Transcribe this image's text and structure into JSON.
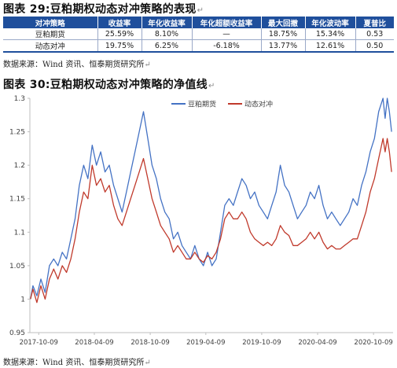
{
  "section1": {
    "title": "图表 29:豆粕期权动态对冲策略的表现",
    "source": "数据来源：Wind 资讯、恒泰期货研究所"
  },
  "table": {
    "headers": [
      "对冲策略",
      "收益率",
      "年化收益率",
      "年化超额收益率",
      "最大回撤",
      "年化波动率",
      "夏普比"
    ],
    "rows": [
      [
        "豆粕期货",
        "25.59%",
        "8.10%",
        "—",
        "18.75%",
        "15.34%",
        "0.53"
      ],
      [
        "动态对冲",
        "19.75%",
        "6.25%",
        "-6.18%",
        "13.77%",
        "12.61%",
        "0.50"
      ]
    ]
  },
  "section2": {
    "title": "图表 30:豆粕期权动态对冲策略的净值线",
    "source": "数据来源：Wind 资讯、恒泰期货研究所"
  },
  "return_mark": "↵",
  "chart_data": {
    "type": "line",
    "x_range": [
      "2017-09-10",
      "2020-12-12"
    ],
    "xticks": [
      "2017-10-09",
      "2018-04-09",
      "2018-10-09",
      "2019-04-09",
      "2019-10-09",
      "2020-04-09",
      "2020-10-09"
    ],
    "ylim": [
      0.95,
      1.3
    ],
    "yticks": [
      "0.95",
      "1",
      "1.05",
      "1.1",
      "1.15",
      "1.2",
      "1.25",
      "1.3"
    ],
    "grid": false,
    "legend_position": "top-right",
    "series": [
      {
        "name": "豆粕期货",
        "color": "#4472c4",
        "points": [
          [
            "2017-09-12",
            1.0
          ],
          [
            "2017-09-20",
            1.02
          ],
          [
            "2017-10-03",
            1.005
          ],
          [
            "2017-10-16",
            1.03
          ],
          [
            "2017-10-30",
            1.01
          ],
          [
            "2017-11-13",
            1.05
          ],
          [
            "2017-11-27",
            1.06
          ],
          [
            "2017-12-11",
            1.05
          ],
          [
            "2017-12-25",
            1.07
          ],
          [
            "2018-01-08",
            1.06
          ],
          [
            "2018-01-22",
            1.09
          ],
          [
            "2018-02-05",
            1.12
          ],
          [
            "2018-02-19",
            1.17
          ],
          [
            "2018-03-05",
            1.2
          ],
          [
            "2018-03-19",
            1.18
          ],
          [
            "2018-04-02",
            1.23
          ],
          [
            "2018-04-16",
            1.2
          ],
          [
            "2018-04-30",
            1.22
          ],
          [
            "2018-05-14",
            1.19
          ],
          [
            "2018-05-28",
            1.2
          ],
          [
            "2018-06-11",
            1.17
          ],
          [
            "2018-06-25",
            1.15
          ],
          [
            "2018-07-09",
            1.13
          ],
          [
            "2018-07-23",
            1.16
          ],
          [
            "2018-08-06",
            1.19
          ],
          [
            "2018-08-20",
            1.22
          ],
          [
            "2018-09-03",
            1.25
          ],
          [
            "2018-09-17",
            1.28
          ],
          [
            "2018-10-01",
            1.24
          ],
          [
            "2018-10-15",
            1.2
          ],
          [
            "2018-10-29",
            1.18
          ],
          [
            "2018-11-12",
            1.15
          ],
          [
            "2018-11-26",
            1.13
          ],
          [
            "2018-12-10",
            1.12
          ],
          [
            "2018-12-24",
            1.09
          ],
          [
            "2019-01-07",
            1.1
          ],
          [
            "2019-01-21",
            1.08
          ],
          [
            "2019-02-04",
            1.07
          ],
          [
            "2019-02-18",
            1.06
          ],
          [
            "2019-03-04",
            1.08
          ],
          [
            "2019-03-18",
            1.06
          ],
          [
            "2019-04-01",
            1.05
          ],
          [
            "2019-04-15",
            1.07
          ],
          [
            "2019-04-29",
            1.05
          ],
          [
            "2019-05-13",
            1.06
          ],
          [
            "2019-05-27",
            1.1
          ],
          [
            "2019-06-10",
            1.14
          ],
          [
            "2019-06-24",
            1.15
          ],
          [
            "2019-07-08",
            1.14
          ],
          [
            "2019-07-22",
            1.16
          ],
          [
            "2019-08-05",
            1.18
          ],
          [
            "2019-08-19",
            1.17
          ],
          [
            "2019-09-02",
            1.15
          ],
          [
            "2019-09-16",
            1.16
          ],
          [
            "2019-09-30",
            1.14
          ],
          [
            "2019-10-14",
            1.13
          ],
          [
            "2019-10-28",
            1.12
          ],
          [
            "2019-11-11",
            1.14
          ],
          [
            "2019-11-25",
            1.16
          ],
          [
            "2019-12-09",
            1.2
          ],
          [
            "2019-12-23",
            1.17
          ],
          [
            "2020-01-06",
            1.16
          ],
          [
            "2020-01-20",
            1.14
          ],
          [
            "2020-02-03",
            1.12
          ],
          [
            "2020-02-17",
            1.13
          ],
          [
            "2020-03-02",
            1.14
          ],
          [
            "2020-03-16",
            1.16
          ],
          [
            "2020-03-30",
            1.15
          ],
          [
            "2020-04-13",
            1.17
          ],
          [
            "2020-04-27",
            1.14
          ],
          [
            "2020-05-11",
            1.12
          ],
          [
            "2020-05-25",
            1.13
          ],
          [
            "2020-06-08",
            1.12
          ],
          [
            "2020-06-22",
            1.11
          ],
          [
            "2020-07-06",
            1.12
          ],
          [
            "2020-07-20",
            1.13
          ],
          [
            "2020-08-03",
            1.15
          ],
          [
            "2020-08-17",
            1.14
          ],
          [
            "2020-08-31",
            1.17
          ],
          [
            "2020-09-14",
            1.19
          ],
          [
            "2020-09-28",
            1.22
          ],
          [
            "2020-10-12",
            1.24
          ],
          [
            "2020-10-26",
            1.28
          ],
          [
            "2020-11-09",
            1.3
          ],
          [
            "2020-11-16",
            1.27
          ],
          [
            "2020-11-23",
            1.3
          ],
          [
            "2020-11-30",
            1.28
          ],
          [
            "2020-12-07",
            1.25
          ]
        ]
      },
      {
        "name": "动态对冲",
        "color": "#c0392b",
        "points": [
          [
            "2017-09-12",
            1.0
          ],
          [
            "2017-09-20",
            1.015
          ],
          [
            "2017-10-03",
            0.995
          ],
          [
            "2017-10-16",
            1.02
          ],
          [
            "2017-10-30",
            1.0
          ],
          [
            "2017-11-13",
            1.03
          ],
          [
            "2017-11-27",
            1.045
          ],
          [
            "2017-12-11",
            1.03
          ],
          [
            "2017-12-25",
            1.05
          ],
          [
            "2018-01-08",
            1.04
          ],
          [
            "2018-01-22",
            1.06
          ],
          [
            "2018-02-05",
            1.09
          ],
          [
            "2018-02-19",
            1.13
          ],
          [
            "2018-03-05",
            1.16
          ],
          [
            "2018-03-19",
            1.15
          ],
          [
            "2018-04-02",
            1.2
          ],
          [
            "2018-04-16",
            1.17
          ],
          [
            "2018-04-30",
            1.18
          ],
          [
            "2018-05-14",
            1.16
          ],
          [
            "2018-05-28",
            1.17
          ],
          [
            "2018-06-11",
            1.14
          ],
          [
            "2018-06-25",
            1.12
          ],
          [
            "2018-07-09",
            1.11
          ],
          [
            "2018-07-23",
            1.13
          ],
          [
            "2018-08-06",
            1.15
          ],
          [
            "2018-08-20",
            1.17
          ],
          [
            "2018-09-03",
            1.19
          ],
          [
            "2018-09-17",
            1.21
          ],
          [
            "2018-10-01",
            1.18
          ],
          [
            "2018-10-15",
            1.15
          ],
          [
            "2018-10-29",
            1.13
          ],
          [
            "2018-11-12",
            1.11
          ],
          [
            "2018-11-26",
            1.1
          ],
          [
            "2018-12-10",
            1.09
          ],
          [
            "2018-12-24",
            1.07
          ],
          [
            "2019-01-07",
            1.08
          ],
          [
            "2019-01-21",
            1.07
          ],
          [
            "2019-02-04",
            1.06
          ],
          [
            "2019-02-18",
            1.06
          ],
          [
            "2019-03-04",
            1.07
          ],
          [
            "2019-03-18",
            1.06
          ],
          [
            "2019-04-01",
            1.055
          ],
          [
            "2019-04-15",
            1.065
          ],
          [
            "2019-04-29",
            1.06
          ],
          [
            "2019-05-13",
            1.07
          ],
          [
            "2019-05-27",
            1.09
          ],
          [
            "2019-06-10",
            1.12
          ],
          [
            "2019-06-24",
            1.13
          ],
          [
            "2019-07-08",
            1.12
          ],
          [
            "2019-07-22",
            1.12
          ],
          [
            "2019-08-05",
            1.13
          ],
          [
            "2019-08-19",
            1.12
          ],
          [
            "2019-09-02",
            1.1
          ],
          [
            "2019-09-16",
            1.09
          ],
          [
            "2019-09-30",
            1.085
          ],
          [
            "2019-10-14",
            1.08
          ],
          [
            "2019-10-28",
            1.085
          ],
          [
            "2019-11-11",
            1.08
          ],
          [
            "2019-11-25",
            1.09
          ],
          [
            "2019-12-09",
            1.11
          ],
          [
            "2019-12-23",
            1.1
          ],
          [
            "2020-01-06",
            1.095
          ],
          [
            "2020-01-20",
            1.08
          ],
          [
            "2020-02-03",
            1.08
          ],
          [
            "2020-02-17",
            1.085
          ],
          [
            "2020-03-02",
            1.09
          ],
          [
            "2020-03-16",
            1.1
          ],
          [
            "2020-03-30",
            1.09
          ],
          [
            "2020-04-13",
            1.1
          ],
          [
            "2020-04-27",
            1.085
          ],
          [
            "2020-05-11",
            1.075
          ],
          [
            "2020-05-25",
            1.08
          ],
          [
            "2020-06-08",
            1.075
          ],
          [
            "2020-06-22",
            1.075
          ],
          [
            "2020-07-06",
            1.08
          ],
          [
            "2020-07-20",
            1.085
          ],
          [
            "2020-08-03",
            1.09
          ],
          [
            "2020-08-17",
            1.09
          ],
          [
            "2020-08-31",
            1.11
          ],
          [
            "2020-09-14",
            1.13
          ],
          [
            "2020-09-28",
            1.16
          ],
          [
            "2020-10-12",
            1.18
          ],
          [
            "2020-10-26",
            1.21
          ],
          [
            "2020-11-09",
            1.24
          ],
          [
            "2020-11-16",
            1.22
          ],
          [
            "2020-11-23",
            1.24
          ],
          [
            "2020-11-30",
            1.22
          ],
          [
            "2020-12-07",
            1.19
          ]
        ]
      }
    ]
  }
}
